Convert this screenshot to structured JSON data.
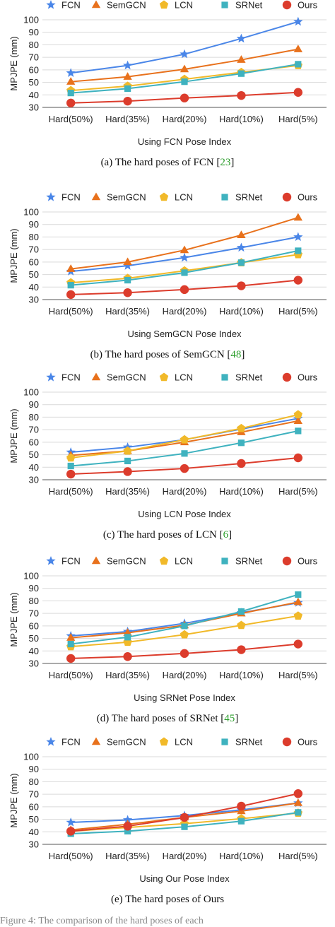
{
  "chart_data": [
    {
      "type": "line",
      "categories": [
        "Hard(50%)",
        "Hard(35%)",
        "Hard(20%)",
        "Hard(10%)",
        "Hard(5%)"
      ],
      "xlabel": "Using FCN Pose Index",
      "ylabel": "MPJPE (mm)",
      "ylim": [
        30,
        100
      ],
      "yticks": [
        30,
        40,
        50,
        60,
        70,
        80,
        90,
        100
      ],
      "grid": true,
      "legend_position": "top",
      "series": [
        {
          "name": "FCN",
          "marker": "star",
          "color": "#4a86e8",
          "values": [
            57.5,
            63.5,
            72.5,
            85,
            98.5
          ]
        },
        {
          "name": "SemGCN",
          "marker": "triangle",
          "color": "#e8711c",
          "values": [
            50.5,
            54.5,
            60.5,
            68,
            76.5
          ]
        },
        {
          "name": "LCN",
          "marker": "pentagon",
          "color": "#f1b929",
          "values": [
            43.5,
            47,
            52.5,
            58,
            63.5
          ]
        },
        {
          "name": "SRNet",
          "marker": "square",
          "color": "#3fb2bf",
          "values": [
            41.5,
            45,
            50.5,
            57,
            64.5
          ]
        },
        {
          "name": "Ours",
          "marker": "circle",
          "color": "#dc3c2c",
          "values": [
            33.5,
            35,
            37.5,
            39.5,
            42
          ]
        }
      ]
    },
    {
      "type": "line",
      "categories": [
        "Hard(50%)",
        "Hard(35%)",
        "Hard(20%)",
        "Hard(10%)",
        "Hard(5%)"
      ],
      "xlabel": "Using SemGCN Pose Index",
      "ylabel": "MPJPE (mm)",
      "ylim": [
        30,
        100
      ],
      "yticks": [
        30,
        40,
        50,
        60,
        70,
        80,
        90,
        100
      ],
      "grid": true,
      "legend_position": "top",
      "series": [
        {
          "name": "FCN",
          "marker": "star",
          "color": "#4a86e8",
          "values": [
            52.5,
            57,
            63.5,
            71.5,
            80
          ]
        },
        {
          "name": "SemGCN",
          "marker": "triangle",
          "color": "#e8711c",
          "values": [
            54.5,
            60,
            69.5,
            81.5,
            95.5
          ]
        },
        {
          "name": "LCN",
          "marker": "pentagon",
          "color": "#f1b929",
          "values": [
            43.5,
            47,
            53,
            59.5,
            66
          ]
        },
        {
          "name": "SRNet",
          "marker": "square",
          "color": "#3fb2bf",
          "values": [
            41.5,
            45.5,
            51.5,
            59.5,
            69
          ]
        },
        {
          "name": "Ours",
          "marker": "circle",
          "color": "#dc3c2c",
          "values": [
            34,
            35.5,
            38,
            41,
            45.5
          ]
        }
      ]
    },
    {
      "type": "line",
      "categories": [
        "Hard(50%)",
        "Hard(35%)",
        "Hard(20%)",
        "Hard(10%)",
        "Hard(5%)"
      ],
      "xlabel": "Using LCN Pose Index",
      "ylabel": "MPJPE (mm)",
      "ylim": [
        30,
        100
      ],
      "yticks": [
        30,
        40,
        50,
        60,
        70,
        80,
        90,
        100
      ],
      "grid": true,
      "legend_position": "top",
      "series": [
        {
          "name": "FCN",
          "marker": "star",
          "color": "#4a86e8",
          "values": [
            52,
            56,
            62,
            70.5,
            79
          ]
        },
        {
          "name": "SemGCN",
          "marker": "triangle",
          "color": "#e8711c",
          "values": [
            49.5,
            53,
            60,
            68,
            77
          ]
        },
        {
          "name": "LCN",
          "marker": "pentagon",
          "color": "#f1b929",
          "values": [
            47.5,
            53,
            62,
            71,
            82
          ]
        },
        {
          "name": "SRNet",
          "marker": "square",
          "color": "#3fb2bf",
          "values": [
            41,
            45,
            51,
            59.5,
            69
          ]
        },
        {
          "name": "Ours",
          "marker": "circle",
          "color": "#dc3c2c",
          "values": [
            34.5,
            36.5,
            39,
            43,
            47.5
          ]
        }
      ]
    },
    {
      "type": "line",
      "categories": [
        "Hard(50%)",
        "Hard(35%)",
        "Hard(20%)",
        "Hard(10%)",
        "Hard(5%)"
      ],
      "xlabel": "Using SRNet Pose Index",
      "ylabel": "MPJPE (mm)",
      "ylim": [
        30,
        100
      ],
      "yticks": [
        30,
        40,
        50,
        60,
        70,
        80,
        90,
        100
      ],
      "grid": true,
      "legend_position": "top",
      "series": [
        {
          "name": "FCN",
          "marker": "star",
          "color": "#4a86e8",
          "values": [
            52,
            55.5,
            62,
            70.5,
            78.5
          ]
        },
        {
          "name": "SemGCN",
          "marker": "triangle",
          "color": "#e8711c",
          "values": [
            50.5,
            54.5,
            60.5,
            70,
            79
          ]
        },
        {
          "name": "LCN",
          "marker": "pentagon",
          "color": "#f1b929",
          "values": [
            43.5,
            47,
            53,
            60.5,
            68
          ]
        },
        {
          "name": "SRNet",
          "marker": "square",
          "color": "#3fb2bf",
          "values": [
            45.5,
            51,
            60,
            71.5,
            85
          ]
        },
        {
          "name": "Ours",
          "marker": "circle",
          "color": "#dc3c2c",
          "values": [
            34,
            35.5,
            38,
            41,
            45.5
          ]
        }
      ]
    },
    {
      "type": "line",
      "categories": [
        "Hard(50%)",
        "Hard(35%)",
        "Hard(20%)",
        "Hard(10%)",
        "Hard(5%)"
      ],
      "xlabel": "Using Our Pose Index",
      "ylabel": "MPJPE (mm)",
      "ylim": [
        30,
        100
      ],
      "yticks": [
        30,
        40,
        50,
        60,
        70,
        80,
        90,
        100
      ],
      "grid": true,
      "legend_position": "top",
      "series": [
        {
          "name": "FCN",
          "marker": "star",
          "color": "#4a86e8",
          "values": [
            47.5,
            49.5,
            53,
            57.5,
            63
          ]
        },
        {
          "name": "SemGCN",
          "marker": "triangle",
          "color": "#e8711c",
          "values": [
            41.5,
            46,
            51.5,
            56.5,
            63
          ]
        },
        {
          "name": "LCN",
          "marker": "pentagon",
          "color": "#f1b929",
          "values": [
            40.5,
            43.5,
            46.5,
            50.5,
            55
          ]
        },
        {
          "name": "SRNet",
          "marker": "square",
          "color": "#3fb2bf",
          "values": [
            38.5,
            40.5,
            44,
            48.5,
            55.5
          ]
        },
        {
          "name": "Ours",
          "marker": "circle",
          "color": "#dc3c2c",
          "values": [
            40.5,
            44.5,
            51.5,
            60.5,
            70.5
          ]
        }
      ]
    }
  ],
  "captions": [
    {
      "text": "(a)  The hard poses of FCN [",
      "ref": "23",
      "close": "]"
    },
    {
      "text": "(b)  The hard poses of SemGCN [",
      "ref": "48",
      "close": "]"
    },
    {
      "text": "(c)  The hard poses of LCN [",
      "ref": "6",
      "close": "]"
    },
    {
      "text": "(d)  The hard poses of SRNet [",
      "ref": "45",
      "close": "]"
    },
    {
      "text": "(e)  The hard poses of Ours",
      "ref": "",
      "close": ""
    }
  ],
  "footer": "Figure 4: The comparison of the hard poses of each"
}
